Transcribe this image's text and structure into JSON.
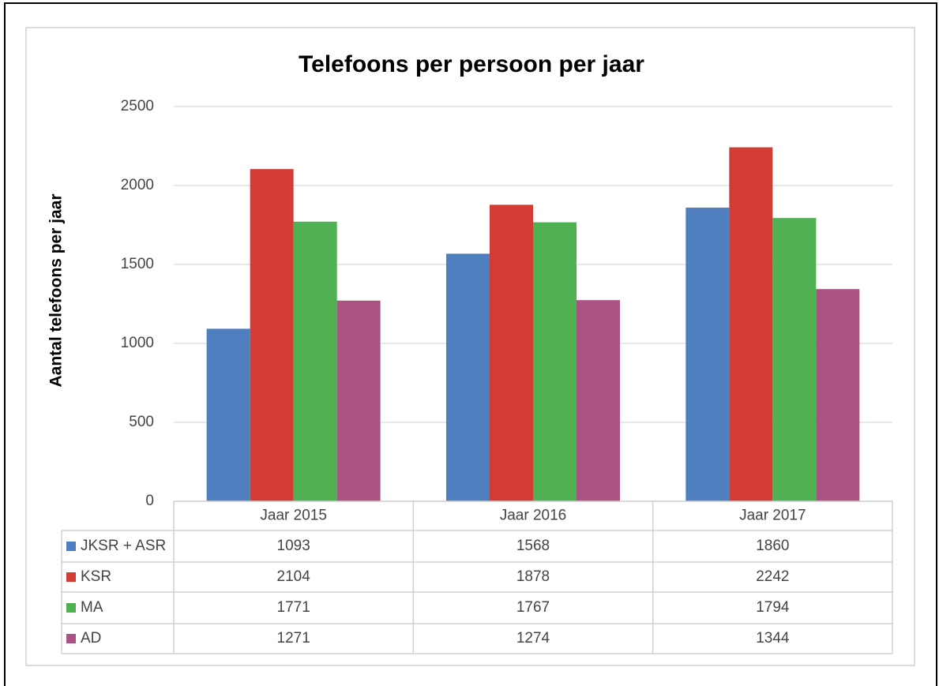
{
  "chart_data": {
    "type": "bar",
    "title": "Telefoons per persoon per jaar",
    "y_label": "Aantal telefoons per jaar",
    "categories": [
      "Jaar 2015",
      "Jaar 2016",
      "Jaar 2017"
    ],
    "series": [
      {
        "name": "JKSR + ASR",
        "color": "#4f7fbe",
        "values": [
          1093,
          1568,
          1860
        ]
      },
      {
        "name": "KSR",
        "color": "#d23c34",
        "values": [
          2104,
          1878,
          2242
        ]
      },
      {
        "name": "MA",
        "color": "#4fb151",
        "values": [
          1771,
          1767,
          1794
        ]
      },
      {
        "name": "AD",
        "color": "#ab5483",
        "values": [
          1271,
          1274,
          1344
        ]
      }
    ],
    "ylim": [
      0,
      2500
    ],
    "yticks": [
      0,
      500,
      1000,
      1500,
      2000,
      2500
    ],
    "grid": true
  }
}
